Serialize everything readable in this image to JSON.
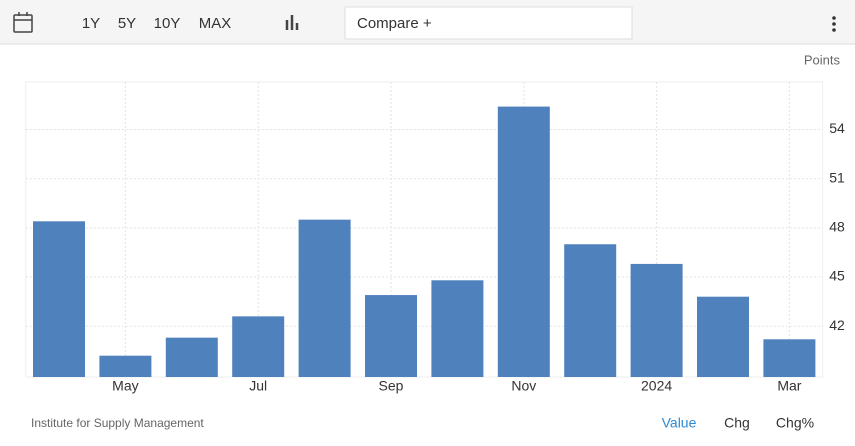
{
  "toolbar": {
    "ranges": [
      "1Y",
      "5Y",
      "10Y",
      "MAX"
    ],
    "compare": "Compare +"
  },
  "chart_data": {
    "type": "bar",
    "y_label": "Points",
    "categories": [
      null,
      "May",
      null,
      "Jul",
      null,
      "Sep",
      null,
      "Nov",
      null,
      "2024",
      null,
      "Mar"
    ],
    "values": [
      48.4,
      40.2,
      41.3,
      42.6,
      48.5,
      43.9,
      44.8,
      55.4,
      47.0,
      45.8,
      43.8,
      41.2
    ],
    "color": "#4f81bd",
    "ylim": [
      38.9,
      56.9
    ],
    "yticks": [
      42,
      45,
      48,
      51,
      54
    ],
    "grid": true
  },
  "footer": {
    "source": "Institute for Supply Management",
    "tabs": [
      "Value",
      "Chg",
      "Chg%"
    ]
  }
}
